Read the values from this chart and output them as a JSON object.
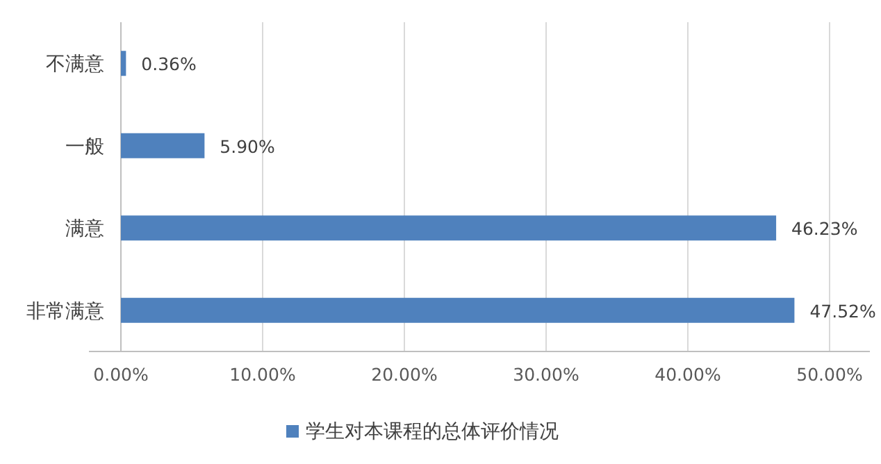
{
  "chart_data": {
    "type": "bar",
    "orientation": "horizontal",
    "categories": [
      "不满意",
      "一般",
      "满意",
      "非常满意"
    ],
    "series": [
      {
        "name": "学生对本课程的总体评价情况",
        "color": "#4f81bd",
        "values": [
          0.36,
          5.9,
          46.23,
          47.52
        ],
        "value_labels": [
          "0.36%",
          "5.90%",
          "46.23%",
          "47.52%"
        ]
      }
    ],
    "xlim": [
      0,
      50
    ],
    "xticks": [
      {
        "value": 0,
        "label": "0.00%"
      },
      {
        "value": 10,
        "label": "10.00%"
      },
      {
        "value": 20,
        "label": "20.00%"
      },
      {
        "value": 30,
        "label": "30.00%"
      },
      {
        "value": 40,
        "label": "40.00%"
      },
      {
        "value": 50,
        "label": "50.00%"
      }
    ],
    "grid": "x",
    "legend": "bottom"
  }
}
